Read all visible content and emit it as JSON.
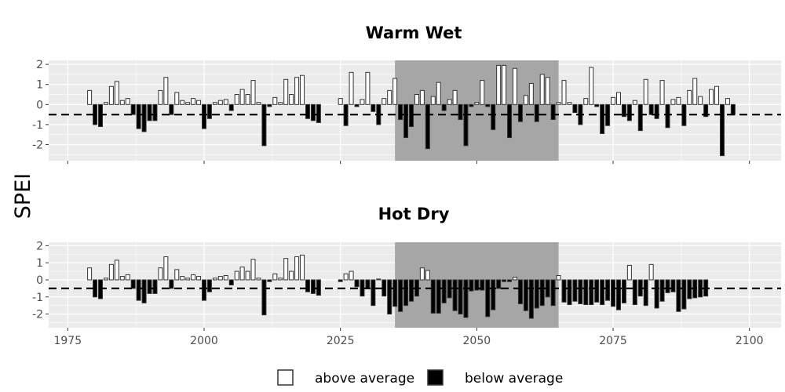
{
  "ylabel": "SPEI",
  "legend": [
    {
      "label": "above average",
      "color": "#ffffff"
    },
    {
      "label": "below average",
      "color": "#000000"
    }
  ],
  "chart_data": [
    {
      "type": "bar",
      "title": "Warm Wet",
      "xlabel": "",
      "ylabel": "SPEI",
      "xlim": [
        1971.5,
        2105.8
      ],
      "ylim": [
        -2.8,
        2.2
      ],
      "xticks": [
        1975,
        2000,
        2025,
        2050,
        2075,
        2100
      ],
      "yticks": [
        -2,
        -1,
        0,
        1,
        2
      ],
      "threshold": -0.5,
      "highlight": [
        2035,
        2065
      ],
      "x_start": 1979,
      "values": [
        0.7,
        -1.0,
        -1.1,
        0.1,
        0.9,
        1.15,
        0.2,
        0.3,
        -0.5,
        -1.2,
        -1.35,
        -0.8,
        -0.8,
        0.7,
        1.35,
        -0.5,
        0.6,
        0.2,
        0.1,
        0.3,
        0.2,
        -1.2,
        -0.7,
        0.1,
        0.2,
        0.25,
        -0.3,
        0.5,
        0.75,
        0.5,
        1.2,
        0.1,
        -2.05,
        -0.1,
        0.35,
        0.1,
        1.25,
        0.5,
        1.35,
        1.45,
        -0.7,
        -0.8,
        -0.9,
        null,
        null,
        null,
        0.3,
        -1.05,
        1.6,
        -0.1,
        0.25,
        1.6,
        -0.35,
        -1.0,
        0.3,
        0.7,
        1.3,
        -0.75,
        -1.65,
        -1.1,
        0.5,
        0.7,
        -2.2,
        0.4,
        1.1,
        -0.3,
        0.25,
        0.7,
        -0.75,
        -2.05,
        -0.1,
        0.1,
        1.2,
        -0.1,
        -1.25,
        1.95,
        1.95,
        -1.65,
        1.8,
        -0.85,
        0.45,
        1.05,
        -0.85,
        1.5,
        1.35,
        -0.75,
        0.1,
        1.2,
        0.1,
        -0.4,
        -1.0,
        0.3,
        1.85,
        -0.1,
        -1.45,
        -1.05,
        0.35,
        0.6,
        -0.6,
        -0.8,
        0.2,
        -1.3,
        1.25,
        -0.5,
        -0.7,
        1.2,
        -1.15,
        0.25,
        0.35,
        -1.05,
        0.7,
        1.3,
        0.4,
        -0.6,
        0.75,
        0.9,
        -2.55,
        0.3,
        -0.5
      ]
    },
    {
      "type": "bar",
      "title": "Hot Dry",
      "xlabel": "",
      "ylabel": "SPEI",
      "xlim": [
        1971.5,
        2105.8
      ],
      "ylim": [
        -2.8,
        2.2
      ],
      "xticks": [
        1975,
        2000,
        2025,
        2050,
        2075,
        2100
      ],
      "yticks": [
        -2,
        -1,
        0,
        1,
        2
      ],
      "threshold": -0.5,
      "highlight": [
        2035,
        2065
      ],
      "x_start": 1979,
      "values": [
        0.7,
        -1.0,
        -1.1,
        0.1,
        0.9,
        1.15,
        0.2,
        0.3,
        -0.5,
        -1.2,
        -1.35,
        -0.8,
        -0.8,
        0.7,
        1.35,
        -0.5,
        0.6,
        0.2,
        0.1,
        0.3,
        0.2,
        -1.2,
        -0.7,
        0.1,
        0.2,
        0.25,
        -0.3,
        0.5,
        0.75,
        0.5,
        1.2,
        0.1,
        -2.05,
        -0.1,
        0.35,
        0.1,
        1.25,
        0.5,
        1.35,
        1.45,
        -0.7,
        -0.8,
        -0.9,
        null,
        null,
        null,
        -0.1,
        0.35,
        0.5,
        -0.4,
        -0.95,
        -0.5,
        -1.5,
        0.05,
        -0.95,
        -2.0,
        -1.55,
        -1.85,
        -1.5,
        -1.25,
        -0.95,
        0.7,
        0.55,
        -1.95,
        -1.95,
        -1.35,
        -1.05,
        -1.8,
        -2.0,
        -2.2,
        -0.65,
        -0.6,
        -0.6,
        -2.15,
        -1.75,
        -0.5,
        -0.1,
        -0.1,
        0.15,
        -1.4,
        -1.8,
        -2.25,
        -1.65,
        -1.5,
        -1.0,
        -1.5,
        0.25,
        -1.3,
        -1.45,
        -1.25,
        -1.4,
        -1.45,
        -1.45,
        -1.3,
        -1.45,
        -1.2,
        -1.55,
        -1.75,
        -1.35,
        0.85,
        -1.45,
        -0.95,
        -1.5,
        0.9,
        -1.65,
        -1.25,
        -0.75,
        -0.7,
        -1.85,
        -1.7,
        -1.1,
        -1.05,
        -1.0,
        -0.95
      ]
    }
  ]
}
